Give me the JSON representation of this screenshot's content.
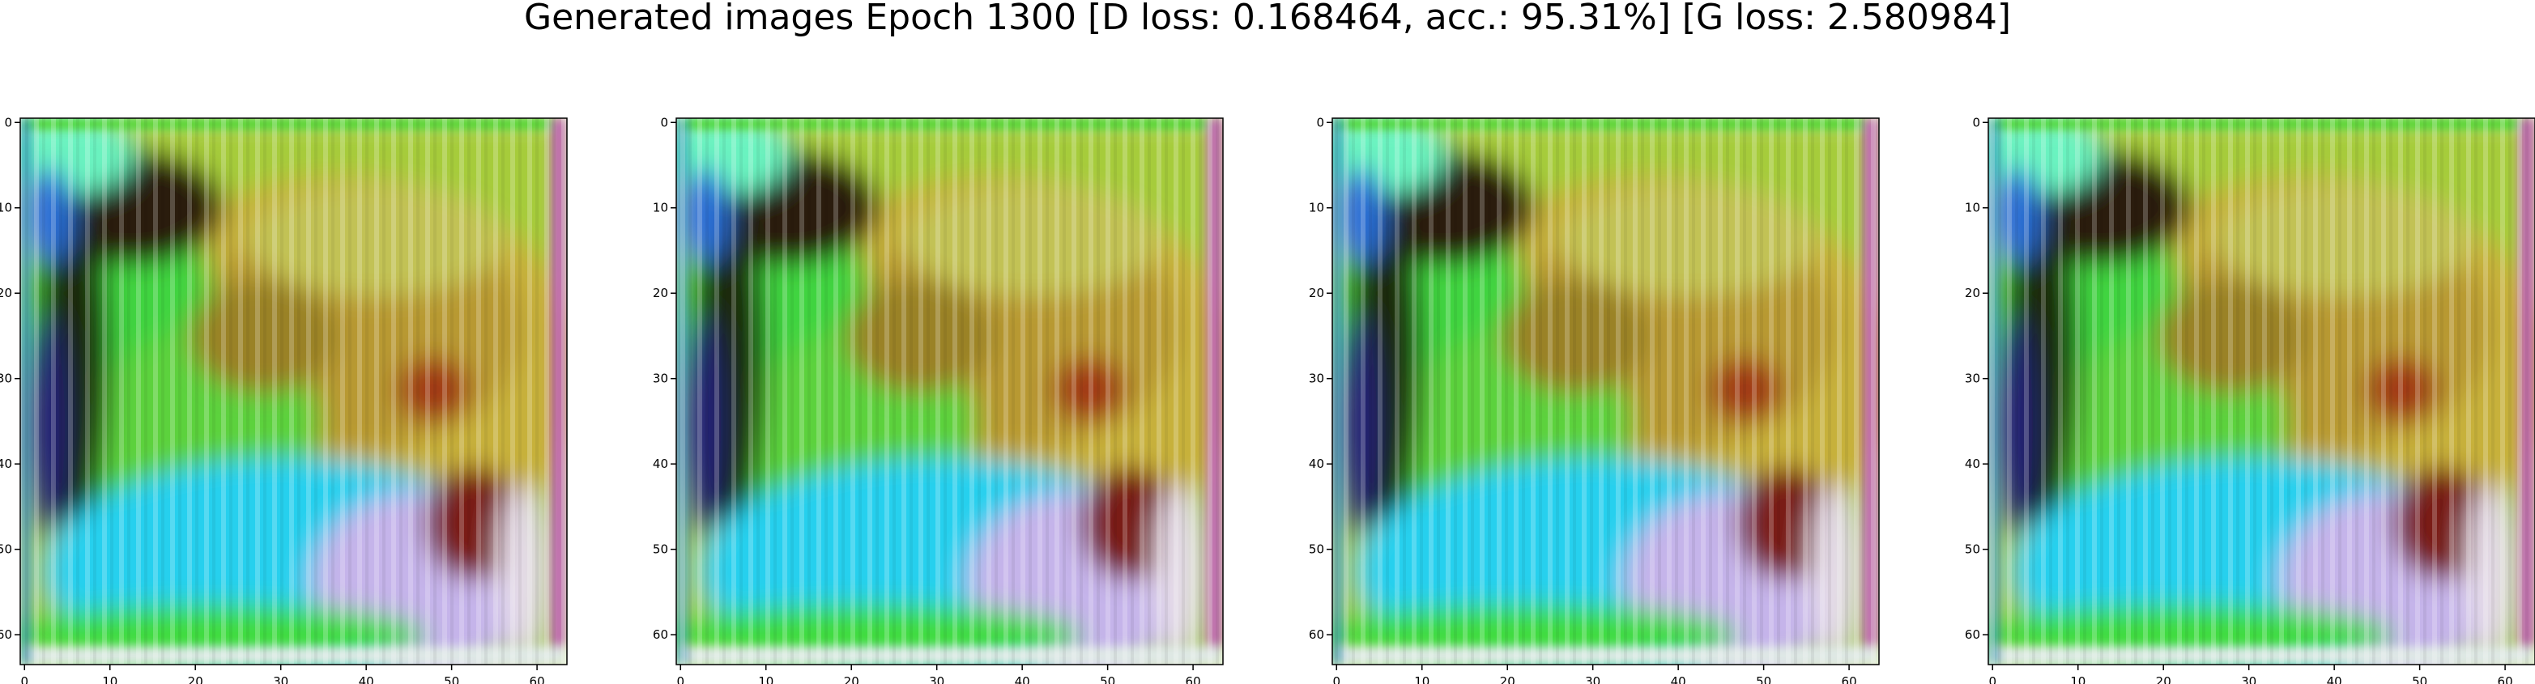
{
  "figure": {
    "title": "Generated images Epoch 1300 [D loss: 0.168464, acc.: 95.31%] [G loss: 2.580984]"
  },
  "chart_data": [
    {
      "type": "heatmap",
      "content": "generated RGB image (64x64)",
      "xlim": [
        -0.5,
        63.5
      ],
      "ylim": [
        63.5,
        -0.5
      ],
      "x_ticks": [
        0,
        10,
        20,
        30,
        40,
        50,
        60
      ],
      "y_ticks": [
        0,
        10,
        20,
        30,
        40,
        50,
        60
      ],
      "grid": false
    },
    {
      "type": "heatmap",
      "content": "generated RGB image (64x64)",
      "xlim": [
        -0.5,
        63.5
      ],
      "ylim": [
        63.5,
        -0.5
      ],
      "x_ticks": [
        0,
        10,
        20,
        30,
        40,
        50,
        60
      ],
      "y_ticks": [
        0,
        10,
        20,
        30,
        40,
        50,
        60
      ],
      "grid": false
    },
    {
      "type": "heatmap",
      "content": "generated RGB image (64x64)",
      "xlim": [
        -0.5,
        63.5
      ],
      "ylim": [
        63.5,
        -0.5
      ],
      "x_ticks": [
        0,
        10,
        20,
        30,
        40,
        50,
        60
      ],
      "y_ticks": [
        0,
        10,
        20,
        30,
        40,
        50,
        60
      ],
      "grid": false
    },
    {
      "type": "heatmap",
      "content": "generated RGB image (64x64)",
      "xlim": [
        -0.5,
        63.5
      ],
      "ylim": [
        63.5,
        -0.5
      ],
      "x_ticks": [
        0,
        10,
        20,
        30,
        40,
        50,
        60
      ],
      "y_ticks": [
        0,
        10,
        20,
        30,
        40,
        50,
        60
      ],
      "grid": false
    }
  ]
}
